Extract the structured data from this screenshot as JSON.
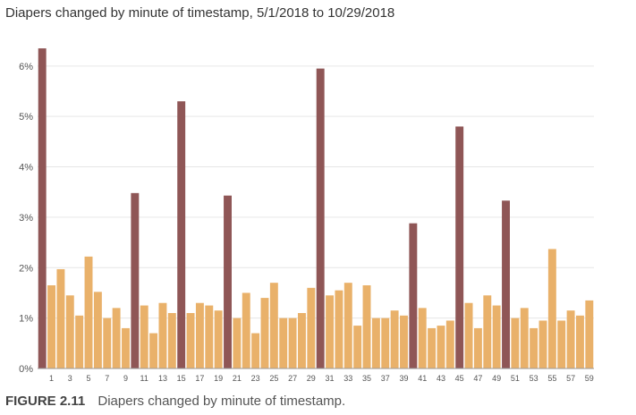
{
  "caption": {
    "label": "FIGURE 2.11",
    "text": "Diapers changed by minute of timestamp."
  },
  "colors": {
    "normal": "#e9b16a",
    "highlight": "#8f5656",
    "grid": "#e6e6e6",
    "axis": "#999999"
  },
  "chart_data": {
    "type": "bar",
    "title": "Diapers changed by minute of timestamp, 5/1/2018 to 10/29/2018",
    "xlabel": "",
    "ylabel": "",
    "categories": [
      0,
      1,
      2,
      3,
      4,
      5,
      6,
      7,
      8,
      9,
      10,
      11,
      12,
      13,
      14,
      15,
      16,
      17,
      18,
      19,
      20,
      21,
      22,
      23,
      24,
      25,
      26,
      27,
      28,
      29,
      30,
      31,
      32,
      33,
      34,
      35,
      36,
      37,
      38,
      39,
      40,
      41,
      42,
      43,
      44,
      45,
      46,
      47,
      48,
      49,
      50,
      51,
      52,
      53,
      54,
      55,
      56,
      57,
      58,
      59
    ],
    "x_tick_labels": [
      "1",
      "3",
      "5",
      "7",
      "9",
      "11",
      "13",
      "15",
      "17",
      "19",
      "21",
      "23",
      "25",
      "27",
      "29",
      "31",
      "33",
      "35",
      "37",
      "39",
      "41",
      "43",
      "45",
      "47",
      "49",
      "51",
      "53",
      "55",
      "57",
      "59"
    ],
    "values": [
      6.35,
      1.65,
      1.97,
      1.45,
      1.05,
      2.22,
      1.52,
      1.0,
      1.2,
      0.8,
      3.48,
      1.25,
      0.7,
      1.3,
      1.1,
      5.3,
      1.1,
      1.3,
      1.25,
      1.15,
      3.43,
      1.0,
      1.5,
      0.7,
      1.4,
      1.7,
      1.0,
      1.0,
      1.1,
      1.6,
      5.95,
      1.45,
      1.55,
      1.7,
      0.85,
      1.65,
      1.0,
      1.0,
      1.15,
      1.05,
      2.88,
      1.2,
      0.8,
      0.85,
      0.95,
      4.8,
      1.3,
      0.8,
      1.45,
      1.25,
      3.33,
      1.0,
      1.2,
      0.8,
      0.95,
      2.37,
      0.95,
      1.15,
      1.05,
      1.35
    ],
    "highlighted": [
      0,
      10,
      15,
      20,
      30,
      40,
      45,
      50
    ],
    "y_unit": "%",
    "ylim": [
      0,
      6.6
    ],
    "yticks": [
      0,
      1,
      2,
      3,
      4,
      5,
      6
    ],
    "ytick_labels": [
      "0%",
      "1%",
      "2%",
      "3%",
      "4%",
      "5%",
      "6%"
    ],
    "grid": true,
    "legend": "none"
  }
}
